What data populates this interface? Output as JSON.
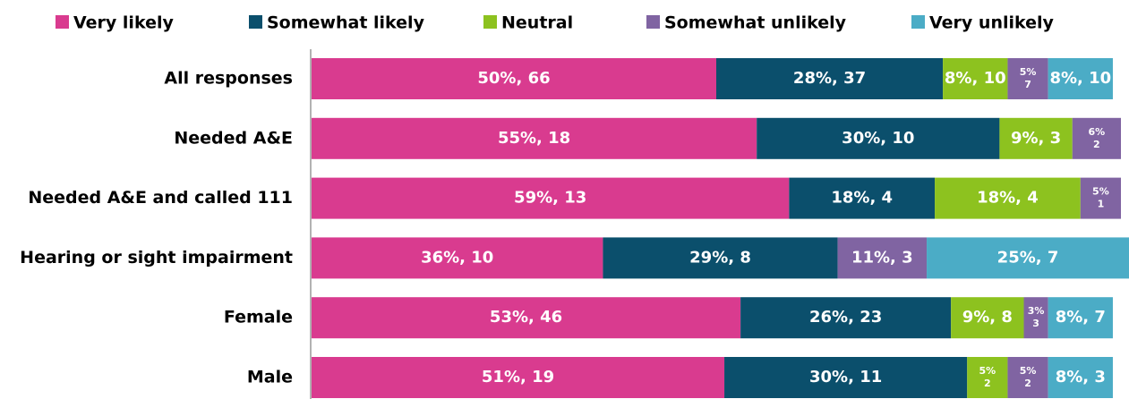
{
  "chart_data": {
    "type": "stacked-bar-horizontal",
    "categories": [
      "All responses",
      "Needed A&E",
      "Needed A&E and called 111",
      "Hearing or sight impairment",
      "Female",
      "Male"
    ],
    "xlim": [
      0,
      100
    ],
    "series": [
      {
        "name": "Very likely",
        "color": "#d93b8f",
        "values": [
          50,
          55,
          59,
          36,
          53,
          51
        ],
        "value_labels": [
          "50%, 66",
          "55%, 18",
          "59%, 13",
          "36%, 10",
          "53%, 46",
          "51%, 19"
        ]
      },
      {
        "name": "Somewhat likely",
        "color": "#0b4f6c",
        "values": [
          28,
          30,
          18,
          29,
          26,
          30
        ],
        "value_labels": [
          "28%, 37",
          "30%, 10",
          "18%, 4",
          "29%, 8",
          "26%, 23",
          "30%, 11"
        ]
      },
      {
        "name": "Neutral",
        "color": "#8dc21f",
        "values": [
          8,
          9,
          18,
          null,
          9,
          5
        ],
        "value_labels": [
          "8%, 10",
          "9%, 3",
          "18%, 4",
          null,
          "9%, 8",
          "5%\n2"
        ]
      },
      {
        "name": "Somewhat unlikely",
        "color": "#8064a2",
        "values": [
          5,
          6,
          5,
          11,
          3,
          5
        ],
        "value_labels": [
          "5%\n7",
          "6%\n2",
          "5%\n1",
          "11%, 3",
          "3%\n3",
          "5%\n2"
        ]
      },
      {
        "name": "Very unlikely",
        "color": "#4bacc6",
        "values": [
          8,
          null,
          null,
          25,
          8,
          8
        ],
        "value_labels": [
          "8%, 10",
          null,
          null,
          "25%, 7",
          "8%, 7",
          "8%, 3"
        ]
      }
    ]
  }
}
